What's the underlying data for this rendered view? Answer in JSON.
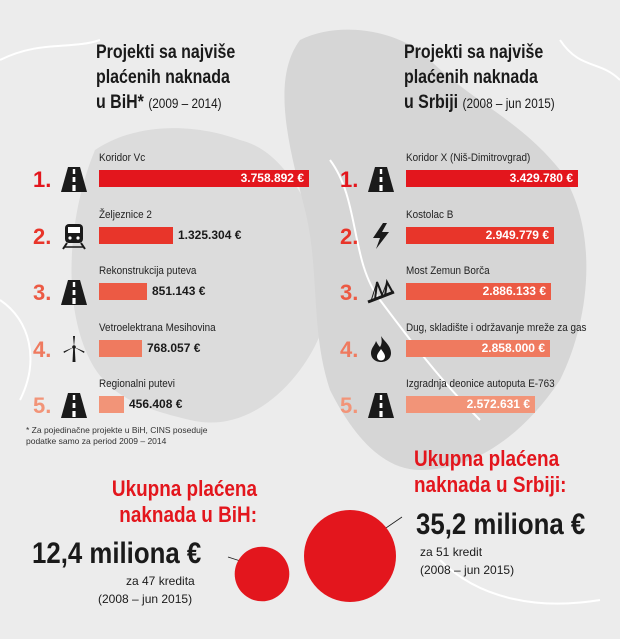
{
  "left": {
    "title_lines": [
      "Projekti sa najviše",
      "plaćenih naknada",
      "u BiH*"
    ],
    "subtitle": "(2009 – 2014)",
    "footnote": [
      "* Za pojedinačne projekte u BiH, CINS poseduje",
      "podatke samo za period 2009 – 2014"
    ],
    "total_title": [
      "Ukupna plaćena",
      "naknada u BiH:"
    ],
    "total_value": "12,4 miliona €",
    "total_projects": "za 47 kredita",
    "total_period": "(2008 – jun 2015)"
  },
  "right": {
    "title_lines": [
      "Projekti sa najviše",
      "plaćenih naknada",
      "u Srbiji"
    ],
    "subtitle": "(2008 – jun 2015)",
    "total_title": [
      "Ukupna plaćena",
      "naknada u Srbiji:"
    ],
    "total_value": "35,2 miliona €",
    "total_projects": "za 51 kredit",
    "total_period": "(2008 – jun 2015)"
  },
  "colors": {
    "accent": "#e3161d",
    "ranks": [
      "#e3161d",
      "#e8352a",
      "#ec5a44",
      "#ef7a5f",
      "#f29478"
    ]
  },
  "chart_data": [
    {
      "type": "bar",
      "title": "Projekti sa najviše plaćenih naknada u BiH* (2009 – 2014)",
      "unit": "€",
      "ranks": [
        "1.",
        "2.",
        "3.",
        "4.",
        "5."
      ],
      "categories": [
        "Koridor Vc",
        "Željeznice 2",
        "Rekonstrukcija puteva",
        "Vetroelektrana Mesihovina",
        "Regionalni putevi"
      ],
      "icons": [
        "road-icon",
        "train-icon",
        "road-icon",
        "wind-turbine-icon",
        "road-icon"
      ],
      "values": [
        3758892,
        1325304,
        851143,
        768057,
        456408
      ],
      "labels": [
        "3.758.892 €",
        "1.325.304 €",
        "851.143 €",
        "768.057 €",
        "456.408 €"
      ]
    },
    {
      "type": "bar",
      "title": "Projekti sa najviše plaćenih naknada u Srbiji (2008 – jun 2015)",
      "unit": "€",
      "ranks": [
        "1.",
        "2.",
        "3.",
        "4.",
        "5."
      ],
      "categories": [
        "Koridor X (Niš-Dimitrovgrad)",
        "Kostolac B",
        "Most Zemun Borča",
        "Dug, skladište i održavanje mreže za gas",
        "Izgradnja deonice autoputa E-763"
      ],
      "icons": [
        "road-icon",
        "lightning-icon",
        "bridge-icon",
        "flame-icon",
        "road-icon"
      ],
      "values": [
        3429780,
        2949779,
        2886133,
        2858000,
        2572631
      ],
      "labels": [
        "3.429.780 €",
        "2.949.779 €",
        "2.886.133 €",
        "2.858.000 €",
        "2.572.631 €"
      ]
    },
    {
      "type": "bubble",
      "title": "Ukupna plaćena naknada",
      "categories": [
        "BiH",
        "Srbija"
      ],
      "values": [
        12.4,
        35.2
      ],
      "unit": "miliona €"
    }
  ]
}
